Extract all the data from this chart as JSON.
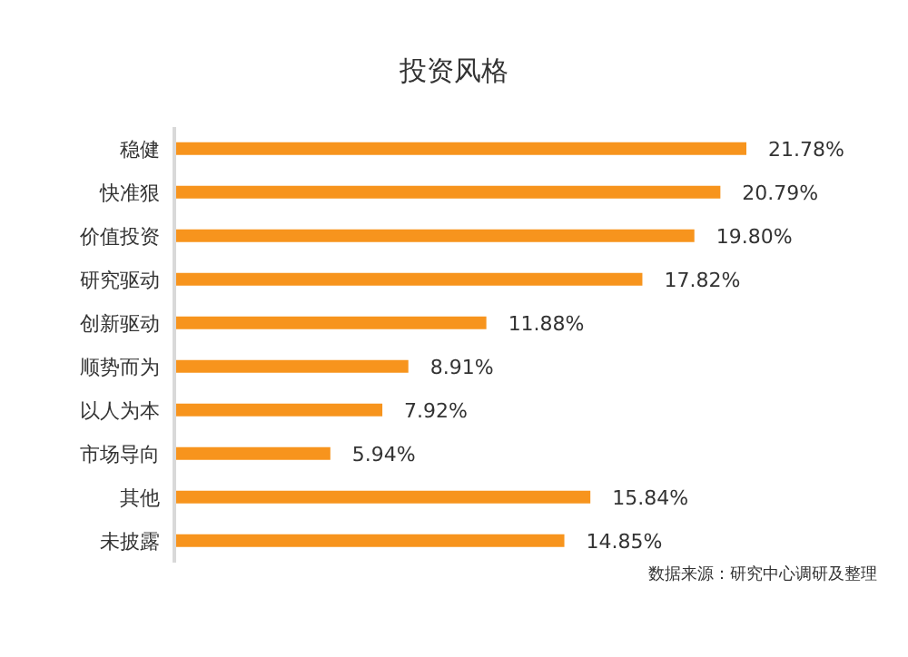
{
  "chart_data": {
    "type": "bar",
    "orientation": "horizontal",
    "title": "投资风格",
    "categories": [
      "稳健",
      "快准狠",
      "价值投资",
      "研究驱动",
      "创新驱动",
      "顺势而为",
      "以人为本",
      "市场导向",
      "其他",
      "未披露"
    ],
    "values": [
      21.78,
      20.79,
      19.8,
      17.82,
      11.88,
      8.91,
      7.92,
      5.94,
      15.84,
      14.85
    ],
    "value_labels": [
      "21.78%",
      "20.79%",
      "19.80%",
      "17.82%",
      "11.88%",
      "8.91%",
      "7.92%",
      "5.94%",
      "15.84%",
      "14.85%"
    ],
    "color": "#f7941d",
    "annotations": [
      "数据来源：研究中心调研及整理"
    ]
  }
}
